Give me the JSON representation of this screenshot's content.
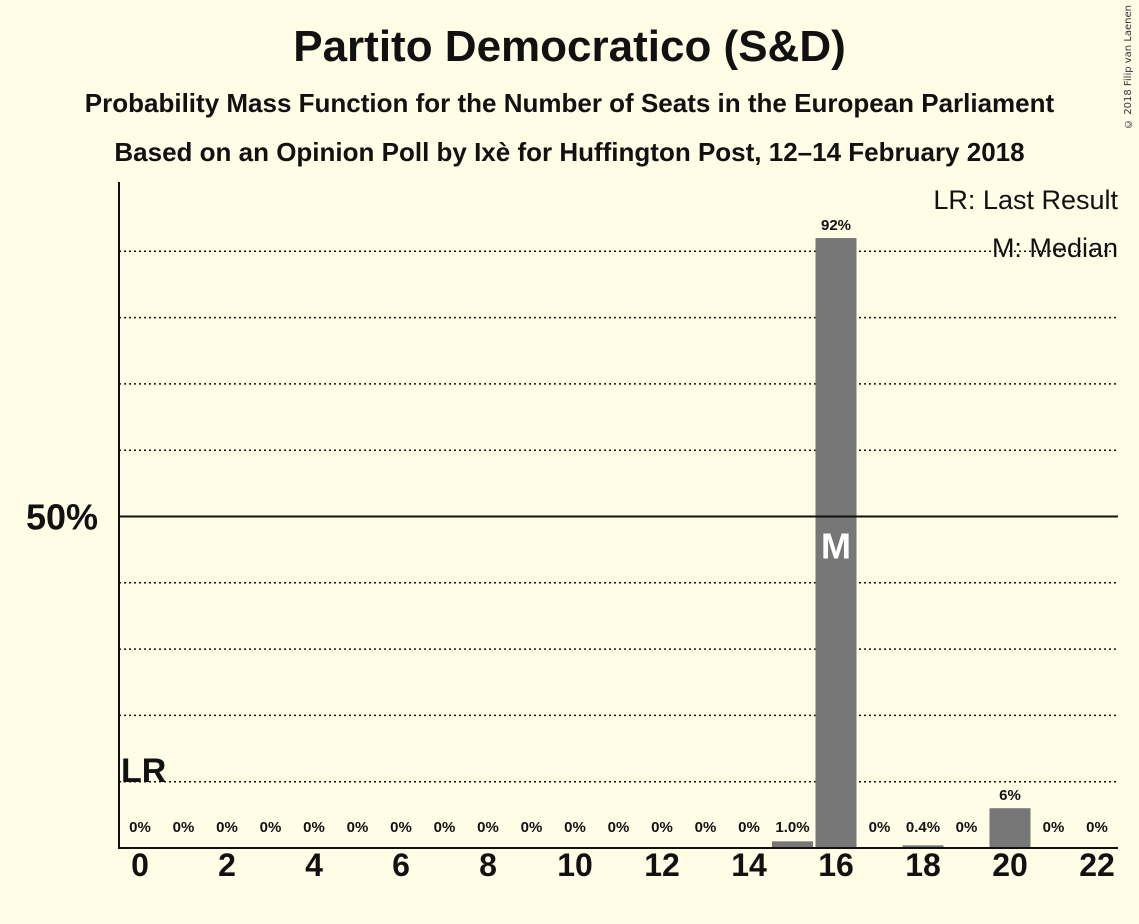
{
  "title": "Partito Democratico (S&D)",
  "subtitle": "Probability Mass Function for the Number of Seats in the European Parliament",
  "subtitle2": "Based on an Opinion Poll by Ixè for Huffington Post, 12–14 February 2018",
  "copyright": "© 2018 Filip van Laenen",
  "colors": {
    "background": "#fffde6",
    "bar": "#777777",
    "text": "#111111"
  },
  "chart_data": {
    "type": "bar",
    "categories": [
      0,
      1,
      2,
      3,
      4,
      5,
      6,
      7,
      8,
      9,
      10,
      11,
      12,
      13,
      14,
      15,
      16,
      17,
      18,
      19,
      20,
      21,
      22
    ],
    "values": [
      0,
      0,
      0,
      0,
      0,
      0,
      0,
      0,
      0,
      0,
      0,
      0,
      0,
      0,
      0,
      1.0,
      92,
      0,
      0.4,
      0,
      6,
      0,
      0
    ],
    "value_labels": [
      "0%",
      "0%",
      "0%",
      "0%",
      "0%",
      "0%",
      "0%",
      "0%",
      "0%",
      "0%",
      "0%",
      "0%",
      "0%",
      "0%",
      "0%",
      "1.0%",
      "92%",
      "0%",
      "0.4%",
      "0%",
      "6%",
      "0%",
      "0%"
    ],
    "x_tick_labels": [
      "0",
      "2",
      "4",
      "6",
      "8",
      "10",
      "12",
      "14",
      "16",
      "18",
      "20",
      "22"
    ],
    "x_ticks": [
      0,
      2,
      4,
      6,
      8,
      10,
      12,
      14,
      16,
      18,
      20,
      22
    ],
    "y_tick_label": "50%",
    "y_tick_value": 50,
    "ylim": [
      0,
      100
    ],
    "gridlines_dotted": [
      10,
      20,
      30,
      40,
      60,
      70,
      80,
      90
    ],
    "last_result": 0,
    "last_result_label": "LR",
    "median": 16,
    "median_label": "M",
    "legend": [
      "LR: Last Result",
      "M: Median"
    ],
    "legend_position": "top-right"
  }
}
